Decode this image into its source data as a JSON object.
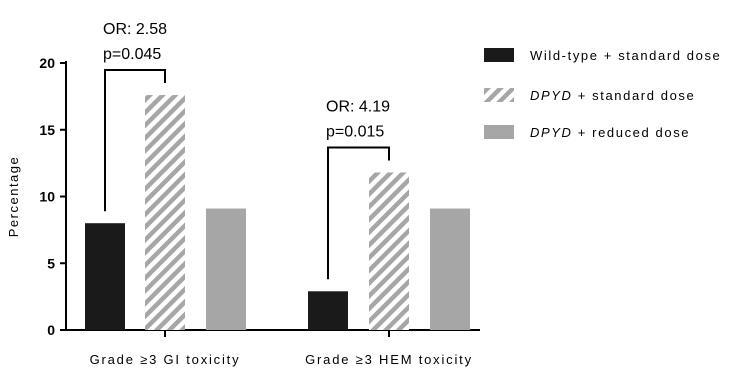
{
  "chart_data": {
    "type": "bar",
    "categories": [
      "Grade ≥3 GI toxicity",
      "Grade ≥3 HEM toxicity"
    ],
    "series": [
      {
        "name": "Wild-type + standard dose",
        "values": [
          8.0,
          2.9
        ],
        "color": "#1a1a1a",
        "pattern": "solid"
      },
      {
        "name": "DPYD + standard dose",
        "name_italic_part": "DPYD",
        "values": [
          17.6,
          11.8
        ],
        "color": "#a6a6a6",
        "pattern": "diagonal-stripes"
      },
      {
        "name": "DPYD + reduced dose",
        "name_italic_part": "DPYD",
        "values": [
          9.1,
          9.1
        ],
        "color": "#a6a6a6",
        "pattern": "solid"
      }
    ],
    "ylabel": "Percentage",
    "xlabel": "",
    "ylim": [
      0,
      20
    ],
    "yticks": [
      0,
      5,
      10,
      15,
      20
    ],
    "legend_position": "right",
    "grid": false,
    "annotations": [
      {
        "category_index": 0,
        "between_series": [
          0,
          1
        ],
        "line1": "OR: 2.58",
        "line2": "p=0.045"
      },
      {
        "category_index": 1,
        "between_series": [
          0,
          1
        ],
        "line1": "OR: 4.19",
        "line2": "p=0.015"
      }
    ]
  }
}
